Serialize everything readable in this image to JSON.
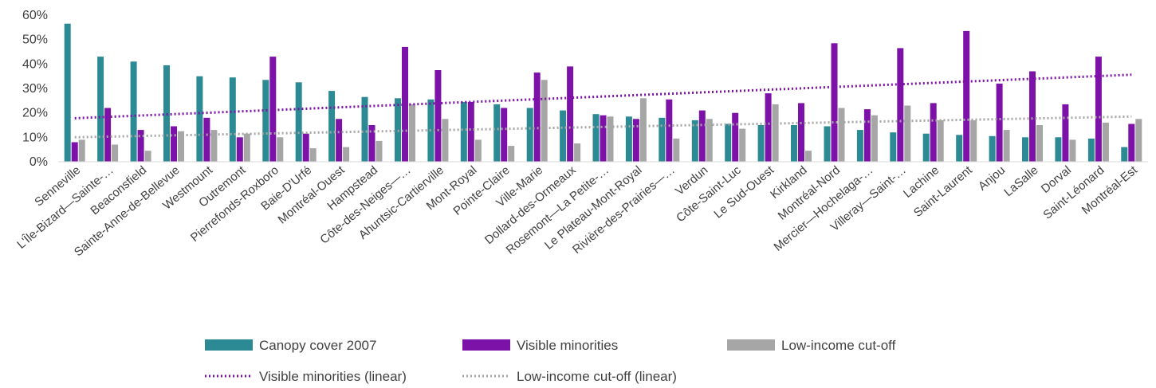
{
  "chart_data": {
    "type": "bar",
    "title": "",
    "xlabel": "",
    "ylabel": "",
    "ylim": [
      0,
      60
    ],
    "yticks": [
      "0%",
      "10%",
      "20%",
      "30%",
      "40%",
      "50%",
      "60%"
    ],
    "grid": false,
    "legend_position": "bottom",
    "categories": [
      "Senneville",
      "L'Île-Bizard—Sainte-…",
      "Beaconsfield",
      "Sainte-Anne-de-Bellevue",
      "Westmount",
      "Outremont",
      "Pierrefonds-Roxboro",
      "Baie-D'Urfé",
      "Montréal-Ouest",
      "Hampstead",
      "Côte-des-Neiges—…",
      "Ahuntsic-Cartierville",
      "Mont-Royal",
      "Pointe-Claire",
      "Ville-Marie",
      "Dollard-des-Ormeaux",
      "Rosemont—La Petite-…",
      "Le Plateau-Mont-Royal",
      "Rivière-des-Prairies—…",
      "Verdun",
      "Côte-Saint-Luc",
      "Le Sud-Ouest",
      "Kirkland",
      "Montréal-Nord",
      "Mercier—Hochelaga-…",
      "Villeray—Saint-…",
      "Lachine",
      "Saint-Laurent",
      "Anjou",
      "LaSalle",
      "Dorval",
      "Saint-Léonard",
      "Montréal-Est"
    ],
    "series": [
      {
        "name": "Canopy cover 2007",
        "color": "#2b8a93",
        "values": [
          56.5,
          43,
          41,
          39.5,
          35,
          34.5,
          33.5,
          32.5,
          29,
          26.5,
          26,
          25.5,
          24.5,
          23.5,
          22,
          21,
          19.5,
          18.5,
          18,
          17,
          15.5,
          15,
          15,
          14.5,
          13,
          12,
          11.5,
          11,
          10.5,
          10,
          10,
          9.5,
          6
        ]
      },
      {
        "name": "Visible minorities",
        "color": "#7d12a8",
        "values": [
          8,
          22,
          13,
          14.5,
          18,
          10,
          43,
          11.5,
          17.5,
          15,
          47,
          37.5,
          24.5,
          22,
          36.5,
          39,
          19,
          17.5,
          25.5,
          21,
          20,
          28,
          24,
          48.5,
          21.5,
          46.5,
          24,
          53.5,
          32,
          37,
          23.5,
          43,
          15.5
        ]
      },
      {
        "name": "Low-income cut-off",
        "color": "#a6a6a6",
        "values": [
          9,
          7,
          4.5,
          12.5,
          13,
          11.5,
          10,
          5.5,
          6,
          8.5,
          23.5,
          17.5,
          9,
          6.5,
          33.5,
          7.5,
          18.5,
          26,
          9.5,
          17.5,
          13.5,
          23.5,
          4.5,
          22,
          19,
          23,
          17,
          17,
          13,
          15,
          9,
          16,
          17.5
        ]
      }
    ],
    "trendlines": [
      {
        "name": "Visible minorities (linear)",
        "color": "#7d12a8",
        "start": 17.8,
        "end": 35.6
      },
      {
        "name": "Low-income cut-off (linear)",
        "color": "#a6a6a6",
        "start": 10.0,
        "end": 18.5
      }
    ]
  }
}
